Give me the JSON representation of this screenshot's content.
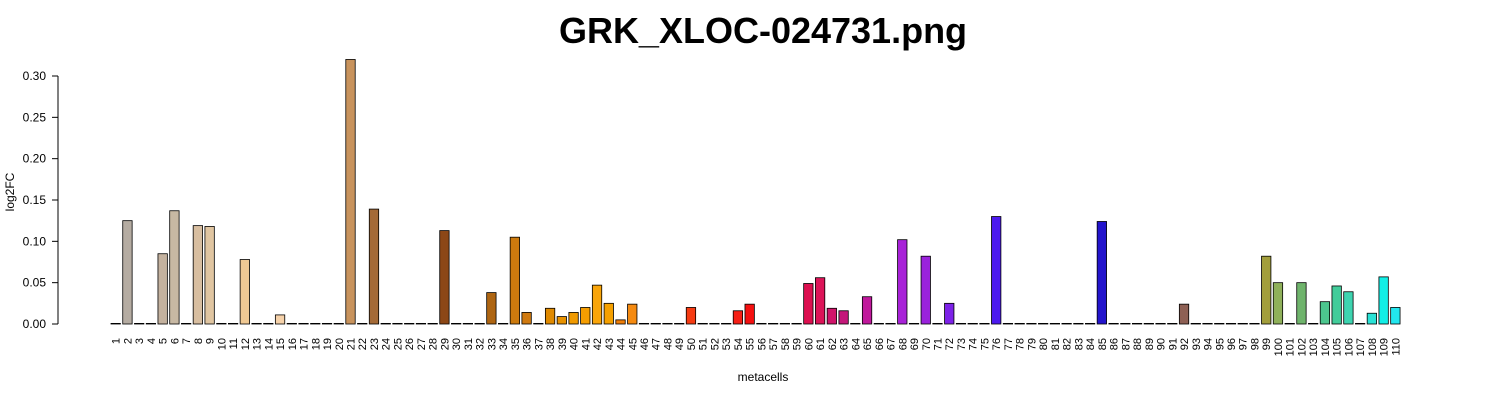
{
  "chart_data": {
    "type": "bar",
    "title": "GRK_XLOC-024731.png",
    "xlabel": "metacells",
    "ylabel": "log2FC",
    "ylim": [
      0,
      0.32
    ],
    "yticks": [
      "0.00",
      "0.05",
      "0.10",
      "0.15",
      "0.20",
      "0.25",
      "0.30"
    ],
    "grid": false,
    "categories": [
      "1",
      "2",
      "3",
      "4",
      "5",
      "6",
      "7",
      "8",
      "9",
      "10",
      "11",
      "12",
      "13",
      "14",
      "15",
      "16",
      "17",
      "18",
      "19",
      "20",
      "21",
      "22",
      "23",
      "24",
      "25",
      "26",
      "27",
      "28",
      "29",
      "30",
      "31",
      "32",
      "33",
      "34",
      "35",
      "36",
      "37",
      "38",
      "39",
      "40",
      "41",
      "42",
      "43",
      "44",
      "45",
      "46",
      "47",
      "48",
      "49",
      "50",
      "51",
      "52",
      "53",
      "54",
      "55",
      "56",
      "57",
      "58",
      "59",
      "60",
      "61",
      "62",
      "63",
      "64",
      "65",
      "66",
      "67",
      "68",
      "69",
      "70",
      "71",
      "72",
      "73",
      "74",
      "75",
      "76",
      "77",
      "78",
      "79",
      "80",
      "81",
      "82",
      "83",
      "84",
      "85",
      "86",
      "87",
      "88",
      "89",
      "90",
      "91",
      "92",
      "93",
      "94",
      "95",
      "96",
      "97",
      "98",
      "99",
      "100",
      "101",
      "102",
      "103",
      "104",
      "105",
      "106",
      "107",
      "108",
      "109",
      "110"
    ],
    "values": [
      0,
      0.125,
      0,
      0,
      0.085,
      0.137,
      0,
      0.119,
      0.118,
      0,
      0,
      0.078,
      0,
      0,
      0.011,
      0,
      0,
      0,
      0,
      0,
      0.32,
      0,
      0.139,
      0,
      0,
      0,
      0,
      0,
      0.113,
      0,
      0,
      0,
      0.038,
      0,
      0.105,
      0.014,
      0,
      0.019,
      0.009,
      0.014,
      0.02,
      0.047,
      0.025,
      0.005,
      0.024,
      0,
      0,
      0,
      0,
      0.02,
      0,
      0,
      0,
      0.016,
      0.024,
      0,
      0,
      0,
      0,
      0.049,
      0.056,
      0.019,
      0.016,
      0,
      0.033,
      0,
      0,
      0.102,
      0,
      0.082,
      0,
      0.025,
      0,
      0,
      0,
      0.13,
      0,
      0,
      0,
      0,
      0,
      0,
      0,
      0,
      0.124,
      0,
      0,
      0,
      0,
      0,
      0,
      0.024,
      0,
      0,
      0,
      0,
      0,
      0,
      0.082,
      0.05,
      0,
      0.05,
      0,
      0.027,
      0.046,
      0.039,
      0,
      0.013,
      0.057,
      0.02
    ],
    "colors": [
      "#ffffff",
      "#b5aca2",
      "#ffffff",
      "#ffffff",
      "#c4b29f",
      "#c7b8a3",
      "#ffffff",
      "#d8bea0",
      "#e0c5a1",
      "#ffffff",
      "#ffffff",
      "#f0c993",
      "#ffffff",
      "#ffffff",
      "#f6d2aa",
      "#ffffff",
      "#ffffff",
      "#ffffff",
      "#ffffff",
      "#ffffff",
      "#c8935d",
      "#ffffff",
      "#a46a37",
      "#ffffff",
      "#ffffff",
      "#ffffff",
      "#ffffff",
      "#ffffff",
      "#8c4716",
      "#ffffff",
      "#ffffff",
      "#ffffff",
      "#ae6512",
      "#ffffff",
      "#cc7a0e",
      "#d07a10",
      "#ffffff",
      "#e08a00",
      "#e89200",
      "#f09a00",
      "#f59d00",
      "#f9a50a",
      "#f5a000",
      "#f07f0a",
      "#f58a10",
      "#ffffff",
      "#ffffff",
      "#ffffff",
      "#ffffff",
      "#f63b12",
      "#ffffff",
      "#ffffff",
      "#ffffff",
      "#f51f16",
      "#f41010",
      "#ffffff",
      "#ffffff",
      "#ffffff",
      "#ffffff",
      "#dc1050",
      "#dc1458",
      "#d0146a",
      "#c4187a",
      "#ffffff",
      "#c0189c",
      "#ffffff",
      "#ffffff",
      "#a822d8",
      "#ffffff",
      "#9a22dc",
      "#ffffff",
      "#7d22e8",
      "#ffffff",
      "#ffffff",
      "#ffffff",
      "#4c1aef",
      "#ffffff",
      "#ffffff",
      "#ffffff",
      "#ffffff",
      "#ffffff",
      "#ffffff",
      "#ffffff",
      "#ffffff",
      "#2314cc",
      "#ffffff",
      "#ffffff",
      "#ffffff",
      "#ffffff",
      "#ffffff",
      "#ffffff",
      "#8e6054",
      "#ffffff",
      "#ffffff",
      "#ffffff",
      "#ffffff",
      "#ffffff",
      "#ffffff",
      "#a29e3c",
      "#8fb05a",
      "#ffffff",
      "#6fb46c",
      "#ffffff",
      "#4cc68e",
      "#42cc9a",
      "#3ed4b0",
      "#ffffff",
      "#2ae2d6",
      "#12eee6",
      "#22e6ee"
    ]
  }
}
